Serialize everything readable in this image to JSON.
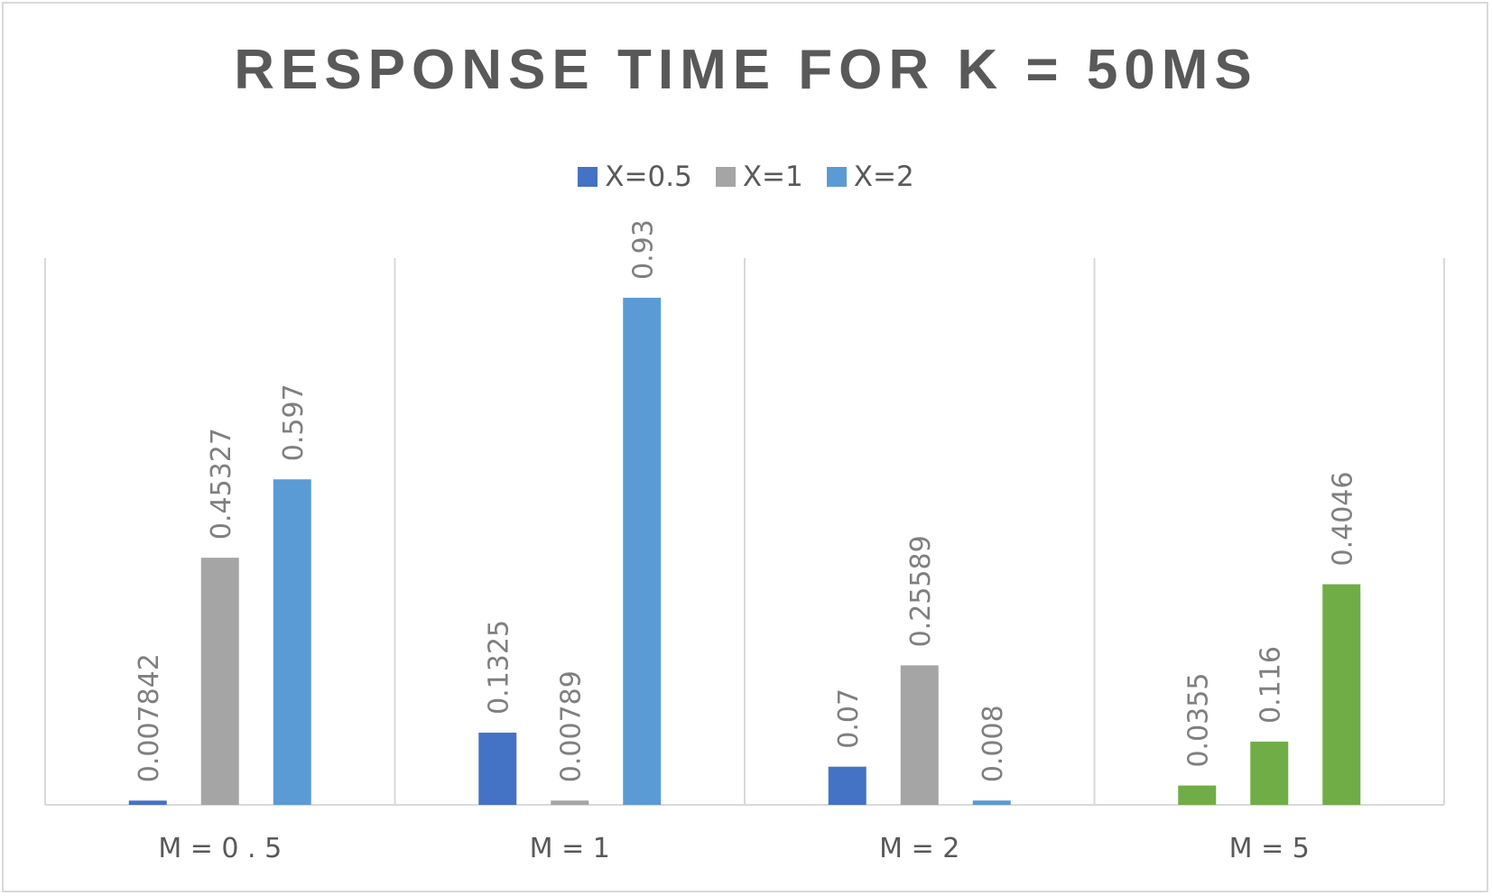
{
  "chart_data": {
    "type": "bar",
    "title": "RESPONSE TIME FOR K = 50MS",
    "categories": [
      "M = 0 . 5",
      "M = 1",
      "M = 2",
      "M = 5"
    ],
    "series": [
      {
        "name": "X=0.5",
        "color": "#4472c4",
        "values": [
          0.007842,
          0.1325,
          0.07,
          0.0355
        ]
      },
      {
        "name": "X=1",
        "color": "#a5a5a5",
        "values": [
          0.45327,
          0.00789,
          0.25589,
          0.116
        ]
      },
      {
        "name": "X=2",
        "color": "#5b9bd5",
        "values": [
          0.597,
          0.93,
          0.008,
          0.4046
        ]
      }
    ],
    "data_labels": [
      [
        "0.007842",
        "0.1325",
        "0.07",
        "0.0355"
      ],
      [
        "0.45327",
        "0.00789",
        "0.25589",
        "0.116"
      ],
      [
        "0.597",
        "0.93",
        "0.008",
        "0.4046"
      ]
    ],
    "category_overrides": {
      "M = 5": {
        "color": "#70ad47"
      }
    },
    "ylim": [
      0,
      0.93
    ],
    "grid": "vertical category separators",
    "legend": "top-center"
  }
}
